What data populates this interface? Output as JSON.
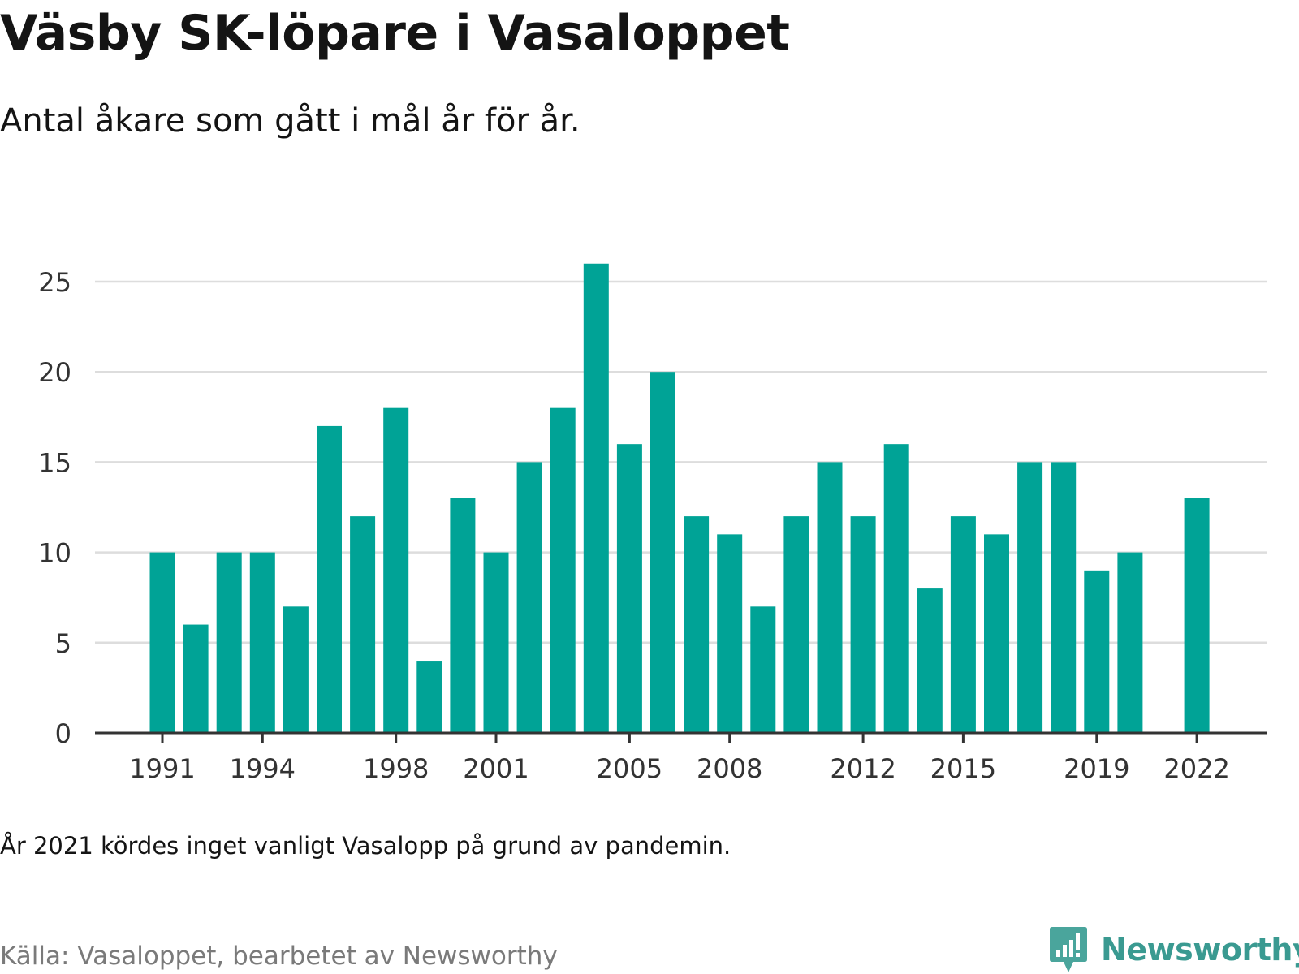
{
  "title": "Väsby SK-löpare i Vasaloppet",
  "subtitle": "Antal åkare som gått i mål år för år.",
  "note": "År 2021 kördes inget vanligt Vasalopp på grund av pandemin.",
  "source": "Källa: Vasaloppet, bearbetet av Newsworthy",
  "brand": {
    "name": "Newsworthy",
    "icon": "newsworthy-logo-icon",
    "color": "#3a9a91"
  },
  "colors": {
    "bar": "#00a396",
    "grid": "#dddddd",
    "axis": "#333333"
  },
  "chart_data": {
    "type": "bar",
    "categories": [
      1991,
      1992,
      1993,
      1994,
      1995,
      1996,
      1997,
      1998,
      1999,
      2000,
      2001,
      2002,
      2003,
      2004,
      2005,
      2006,
      2007,
      2008,
      2009,
      2010,
      2011,
      2012,
      2013,
      2014,
      2015,
      2016,
      2017,
      2018,
      2019,
      2020,
      2021,
      2022
    ],
    "values": [
      10,
      6,
      10,
      10,
      7,
      17,
      12,
      18,
      4,
      13,
      10,
      15,
      18,
      26,
      16,
      20,
      12,
      11,
      7,
      12,
      15,
      12,
      16,
      8,
      12,
      11,
      15,
      15,
      9,
      10,
      null,
      13
    ],
    "x_tick_labels": [
      1991,
      1994,
      1998,
      2001,
      2005,
      2008,
      2012,
      2015,
      2019,
      2022
    ],
    "y_ticks": [
      0,
      5,
      10,
      15,
      20,
      25
    ],
    "ylim": [
      0,
      26
    ],
    "grid": true,
    "legend": "none"
  }
}
